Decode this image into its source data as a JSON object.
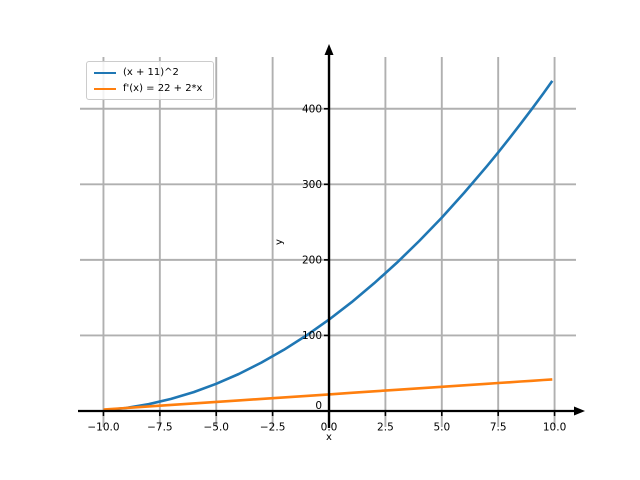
{
  "chart_data": {
    "type": "line",
    "title": "",
    "xlabel": "x",
    "ylabel": "y",
    "grid": true,
    "legend_position": "upper left",
    "background": "#ffffff",
    "grid_color": "#b0b0b0",
    "axis_color": "#000000",
    "xlim": [
      -11.04,
      10.95
    ],
    "ylim": [
      -21.2,
      468.5
    ],
    "x": [
      -10,
      -9,
      -8,
      -7,
      -6,
      -5,
      -4,
      -3,
      -2,
      -1,
      0,
      1,
      2,
      3,
      4,
      5,
      6,
      7,
      7.5,
      8,
      8.5,
      9,
      9.5,
      9.9
    ],
    "series": [
      {
        "name": "(x + 11)^2",
        "color": "#1f77b4",
        "values": [
          1,
          4,
          9,
          16,
          25,
          36,
          49,
          64,
          81,
          100,
          121,
          144,
          169,
          196,
          225,
          256,
          289,
          324,
          342.25,
          361,
          380.25,
          400,
          420.25,
          436.81
        ]
      },
      {
        "name": "f'(x) = 22 + 2*x",
        "color": "#ff7f0e",
        "values": [
          2,
          4,
          6,
          8,
          10,
          12,
          14,
          16,
          18,
          20,
          22,
          24,
          26,
          28,
          30,
          32,
          34,
          36,
          37,
          38,
          39,
          40,
          41,
          41.8
        ]
      }
    ],
    "xticks": {
      "values": [
        -10,
        -7.5,
        -5,
        -2.5,
        0,
        2.5,
        5,
        7.5,
        10
      ],
      "labels": [
        "−10.0",
        "−7.5",
        "−5.0",
        "−2.5",
        "0.0",
        "2.5",
        "5.0",
        "7.5",
        "10.0"
      ]
    },
    "yticks": {
      "values": [
        0,
        100,
        200,
        300,
        400
      ],
      "labels": [
        "0",
        "100",
        "200",
        "300",
        "400"
      ]
    }
  }
}
